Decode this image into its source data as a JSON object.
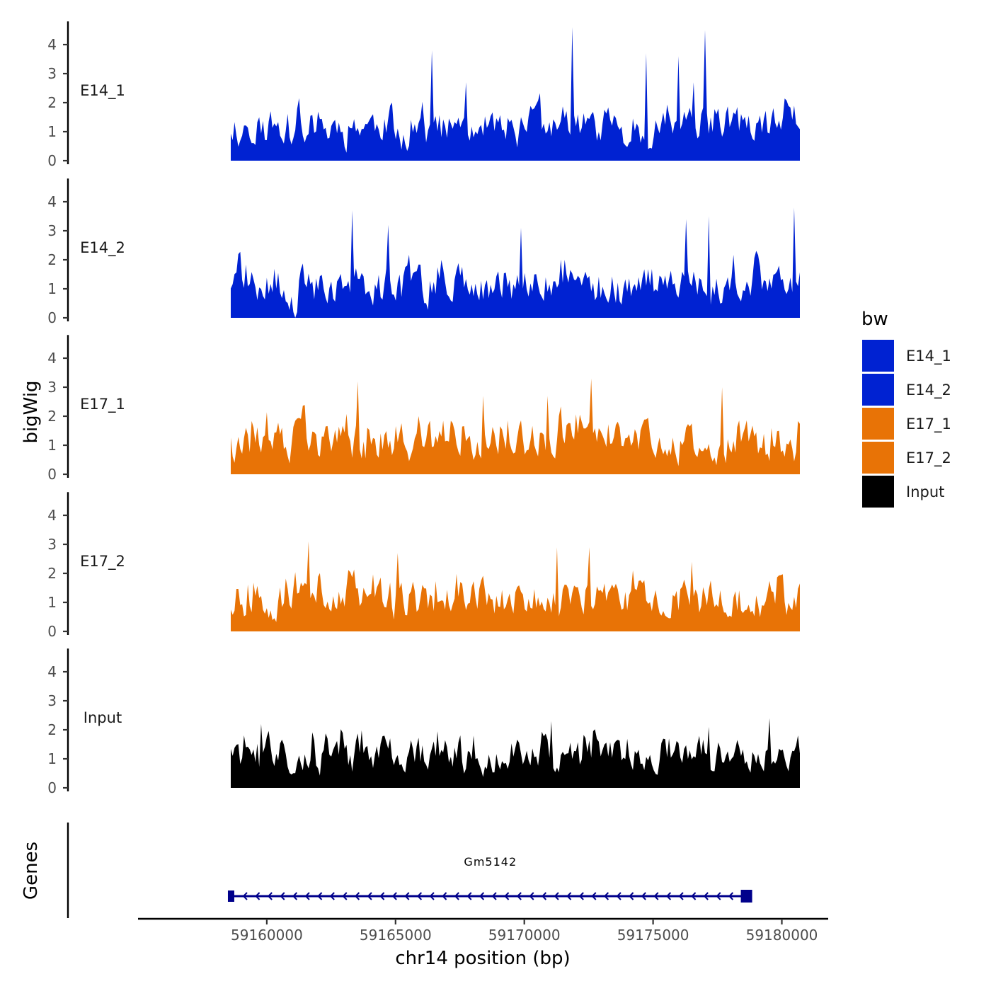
{
  "chart_data": {
    "type": "area",
    "title": "",
    "ylabel": "bigWig",
    "xlabel": "chr14 position (bp)",
    "genes_label": "Genes",
    "ylim": [
      0,
      4.8
    ],
    "yticks": [
      "0",
      "1",
      "2",
      "3",
      "4"
    ],
    "xlim": [
      59155000,
      59181800
    ],
    "xticks": [
      59160000,
      59165000,
      59170000,
      59175000,
      59180000
    ],
    "xtick_labels": [
      "59160000",
      "59165000",
      "59170000",
      "59175000",
      "59180000"
    ],
    "region": [
      59158600,
      59180700
    ],
    "tracks": [
      {
        "name": "E14_1",
        "color": "#0022d2",
        "seed": 11,
        "peaks": [
          [
            59166400,
            3.8
          ],
          [
            59171850,
            4.6
          ],
          [
            59174700,
            3.7
          ],
          [
            59175950,
            3.6
          ],
          [
            59177050,
            4.5
          ],
          [
            59176600,
            2.7
          ],
          [
            59167750,
            2.7
          ]
        ]
      },
      {
        "name": "E14_2",
        "color": "#0022d2",
        "seed": 23,
        "peaks": [
          [
            59163300,
            3.7
          ],
          [
            59164700,
            3.2
          ],
          [
            59169900,
            3.1
          ],
          [
            59176300,
            3.4
          ],
          [
            59177150,
            3.5
          ],
          [
            59180500,
            3.8
          ],
          [
            59161100,
            0.0
          ]
        ]
      },
      {
        "name": "E17_1",
        "color": "#e87306",
        "seed": 37,
        "peaks": [
          [
            59163550,
            3.2
          ],
          [
            59172600,
            3.3
          ],
          [
            59177700,
            3.0
          ],
          [
            59168400,
            2.7
          ],
          [
            59170900,
            2.7
          ]
        ]
      },
      {
        "name": "E17_2",
        "color": "#e87306",
        "seed": 53,
        "peaks": [
          [
            59161600,
            3.1
          ],
          [
            59171300,
            2.9
          ],
          [
            59176500,
            2.4
          ],
          [
            59172500,
            2.9
          ],
          [
            59165100,
            2.7
          ]
        ]
      },
      {
        "name": "Input",
        "color": "#000000",
        "seed": 71,
        "peaks": [
          [
            59159800,
            2.2
          ],
          [
            59171050,
            2.3
          ],
          [
            59179500,
            2.4
          ],
          [
            59168000,
            1.8
          ],
          [
            59177200,
            2.1
          ]
        ]
      }
    ],
    "gene": {
      "name": "Gm5142",
      "start": 59158600,
      "end": 59178600,
      "strand": "-",
      "color": "#00008b"
    },
    "legend": {
      "title": "bw",
      "placement": "right",
      "entries": [
        {
          "label": "E14_1",
          "color": "#0022d2"
        },
        {
          "label": "E14_2",
          "color": "#0022d2"
        },
        {
          "label": "E17_1",
          "color": "#e87306"
        },
        {
          "label": "E17_2",
          "color": "#e87306"
        },
        {
          "label": "Input",
          "color": "#000000"
        }
      ]
    }
  }
}
